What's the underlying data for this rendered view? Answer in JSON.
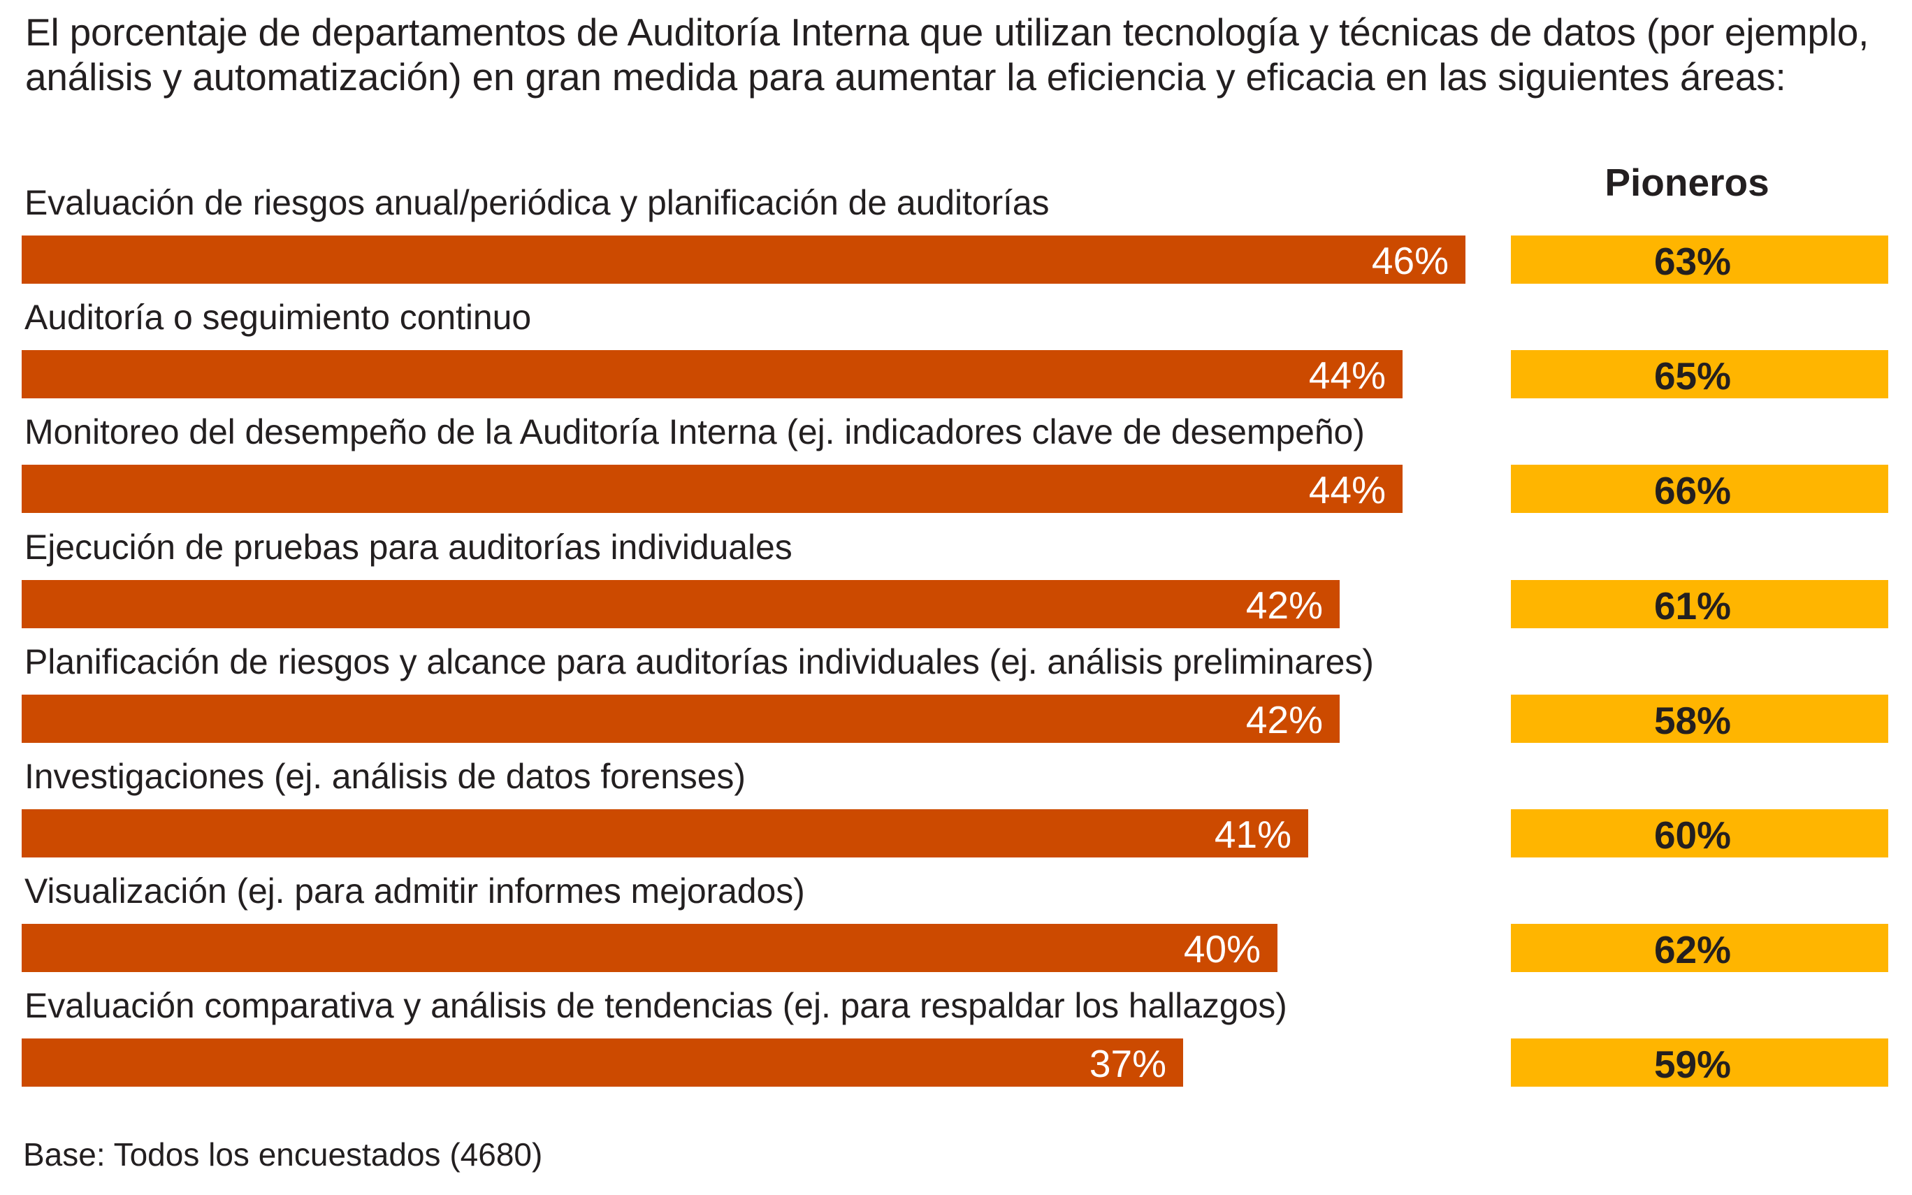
{
  "chart_data": {
    "type": "bar",
    "orientation": "horizontal",
    "title": "El porcentaje de departamentos de Auditoría Interna que utilizan tecnología y técnicas de datos (por ejemplo, análisis y automatización) en gran medida para aumentar la eficiencia y eficacia en las siguientes áreas:",
    "xlabel": "",
    "ylabel": "",
    "unit": "%",
    "categories": [
      "Evaluación de riesgos anual/periódica y planificación de auditorías",
      "Auditoría o seguimiento continuo",
      "Monitoreo del desempeño de la Auditoría Interna (ej. indicadores clave de desempeño)",
      "Ejecución de pruebas para auditorías individuales",
      "Planificación de riesgos y alcance para auditorías individuales (ej. análisis preliminares)",
      "Investigaciones (ej. análisis de datos forenses)",
      "Visualización (ej. para admitir informes mejorados)",
      "Evaluación comparativa y análisis de tendencias (ej. para respaldar los hallazgos)"
    ],
    "series": [
      {
        "name": "Todos los encuestados",
        "color": "#cc4a00",
        "values": [
          46,
          44,
          44,
          42,
          42,
          41,
          40,
          37
        ],
        "labels": [
          "46%",
          "44%",
          "44%",
          "42%",
          "42%",
          "41%",
          "40%",
          "37%"
        ]
      },
      {
        "name": "Pioneros",
        "color": "#ffb500",
        "values": [
          63,
          65,
          66,
          61,
          58,
          60,
          62,
          59
        ],
        "labels": [
          "63%",
          "65%",
          "66%",
          "61%",
          "58%",
          "60%",
          "62%",
          "59%"
        ]
      }
    ],
    "column_header": "Pioneros",
    "footnote": "Base: Todos los encuestados (4680)",
    "grid": false,
    "legend": "none"
  }
}
